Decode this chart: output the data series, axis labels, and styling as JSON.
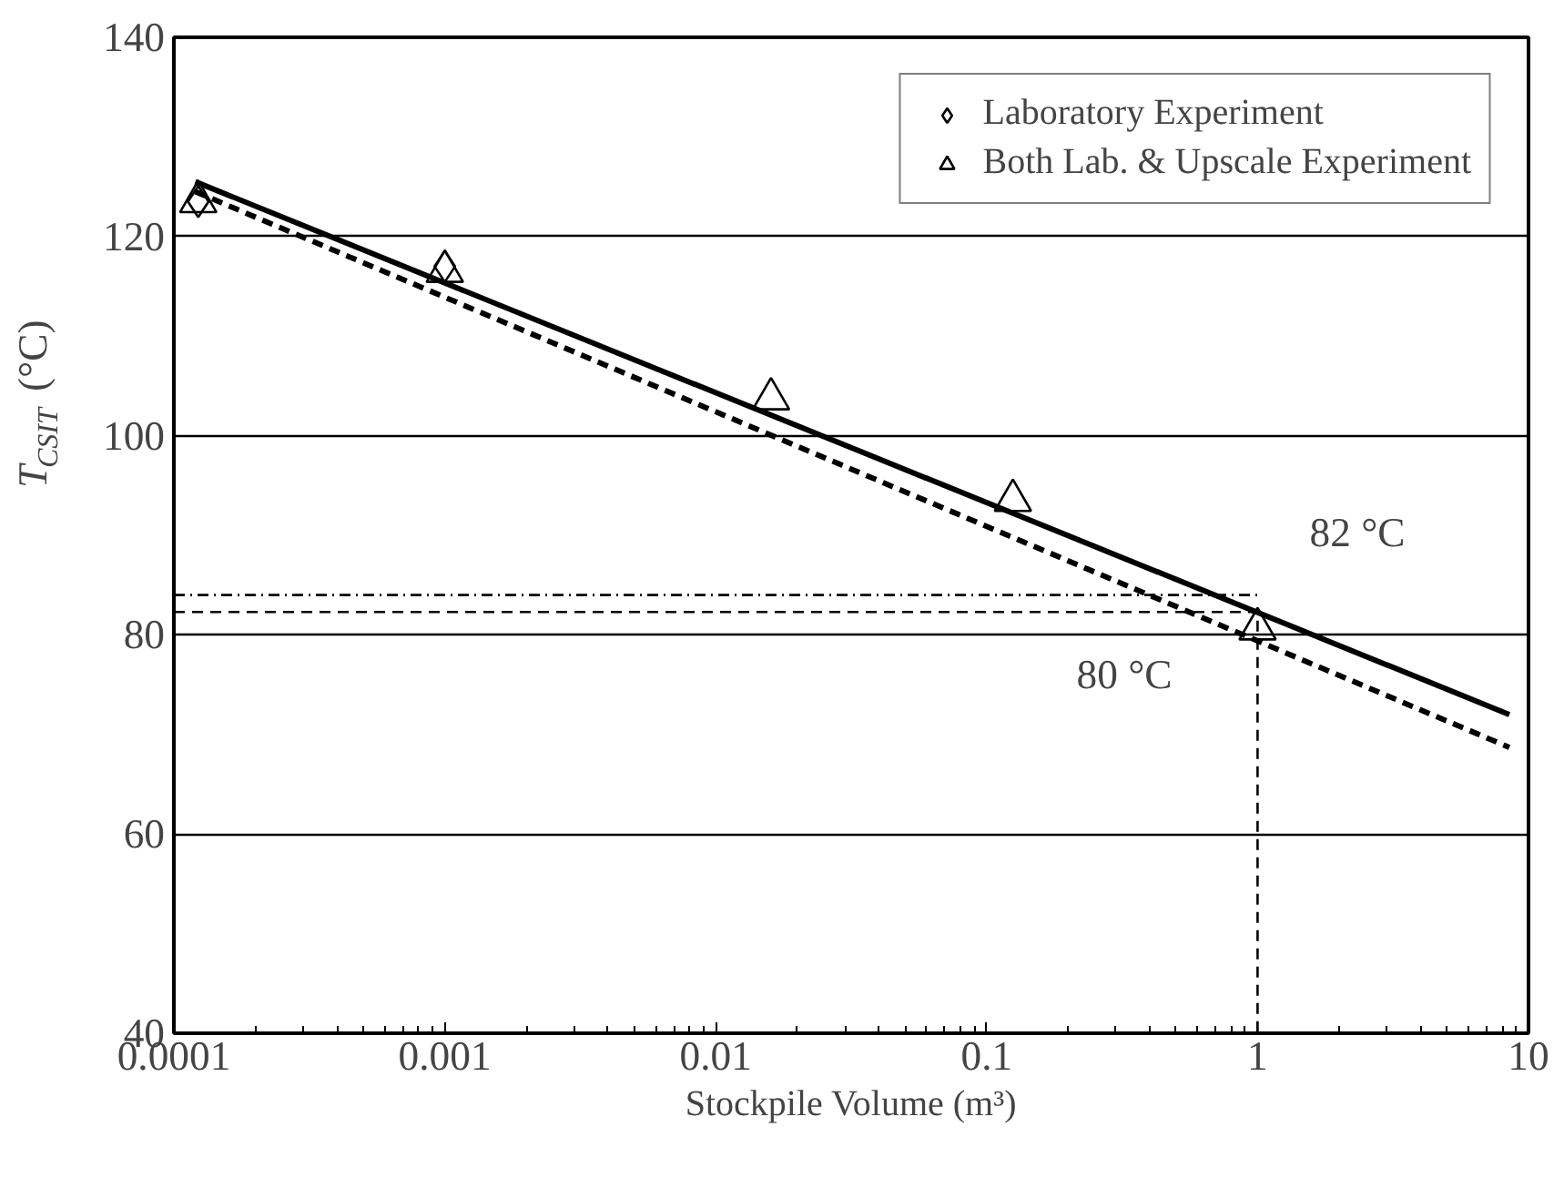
{
  "chart_data": {
    "type": "scatter",
    "xlabel": "Stockpile Volume (m³)",
    "ylabel": "T$_{CSIT}$ (°C)",
    "log": "x",
    "xlim": [
      0.0001,
      10
    ],
    "xticks": [
      0.0001,
      0.001,
      0.01,
      0.1,
      1,
      10
    ],
    "ylim": [
      40,
      140
    ],
    "yticks": [
      40,
      60,
      80,
      100,
      120,
      140
    ],
    "grid": "y",
    "legend": "top right",
    "series": [
      {
        "name": "Laboratory Experiment",
        "marker": "diamond",
        "color": "#000000",
        "x": [
          0.000123,
          0.001
        ],
        "values": [
          123.5,
          117
        ]
      },
      {
        "name": "Both Lab. & Upscale Experiment",
        "marker": "triangle",
        "color": "#000000",
        "x": [
          0.000123,
          0.001,
          0.016,
          0.125,
          1
        ],
        "values": [
          123.5,
          116.5,
          103.7,
          93.5,
          80.6
        ]
      },
      {
        "type": "line",
        "line_style": "solid",
        "color": "#000000",
        "x": [
          0.00012,
          8.5
        ],
        "values": [
          125.5,
          72
        ]
      },
      {
        "type": "line",
        "line_style": "dashed",
        "color": "#000000",
        "x": [
          0.00012,
          8.5
        ],
        "values": [
          124.5,
          68.7
        ]
      },
      {
        "type": "line",
        "line_style": "dotted",
        "color": "#000000",
        "x": [
          0.0001,
          1
        ],
        "values": [
          84,
          84
        ]
      },
      {
        "type": "line",
        "line_style": "dashed",
        "color": "#000000",
        "x": [
          0.0001,
          1,
          1
        ],
        "values": [
          82.3,
          82.3,
          40
        ]
      }
    ],
    "annotations": [
      "82 °C",
      "80 °C"
    ]
  }
}
